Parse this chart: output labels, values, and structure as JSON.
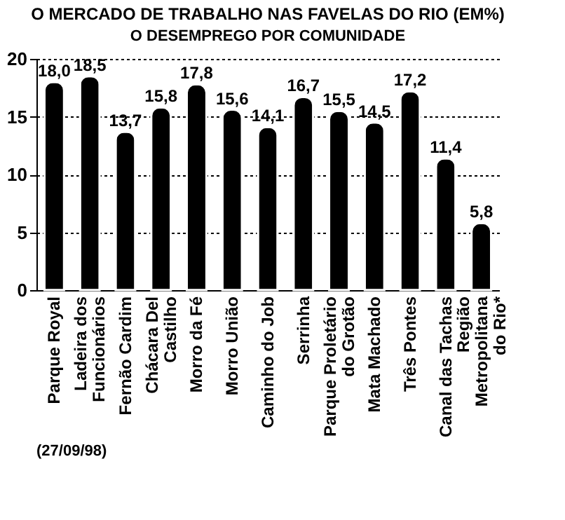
{
  "chart_data": {
    "type": "bar",
    "title": "O MERCADO DE TRABALHO NAS FAVELAS DO RIO (EM%)",
    "subtitle": "O DESEMPREGO POR COMUNIDADE",
    "categories": [
      "Parque Royal",
      "Ladeira dos\nFuncionários",
      "Fernão Cardim",
      "Chácara Del\nCastilho",
      "Morro da Fé",
      "Morro União",
      "Caminho do Job",
      "Serrinha",
      "Parque Proletário\ndo Grotão",
      "Mata Machado",
      "Três Pontes",
      "Canal das Tachas",
      "Região\nMetropolitana\ndo Rio*"
    ],
    "values": [
      18.0,
      18.5,
      13.7,
      15.8,
      17.8,
      15.6,
      14.1,
      16.7,
      15.5,
      14.5,
      17.2,
      11.4,
      5.8
    ],
    "value_labels": [
      "18,0",
      "18,5",
      "13,7",
      "15,8",
      "17,8",
      "15,6",
      "14,1",
      "16,7",
      "15,5",
      "14,5",
      "17,2",
      "11,4",
      "5,8"
    ],
    "color": "#000000",
    "ylim": [
      0,
      20
    ],
    "yticks": [
      0,
      5,
      10,
      15,
      20
    ],
    "grid": "y",
    "annotations": [
      "(27/09/98)"
    ]
  }
}
